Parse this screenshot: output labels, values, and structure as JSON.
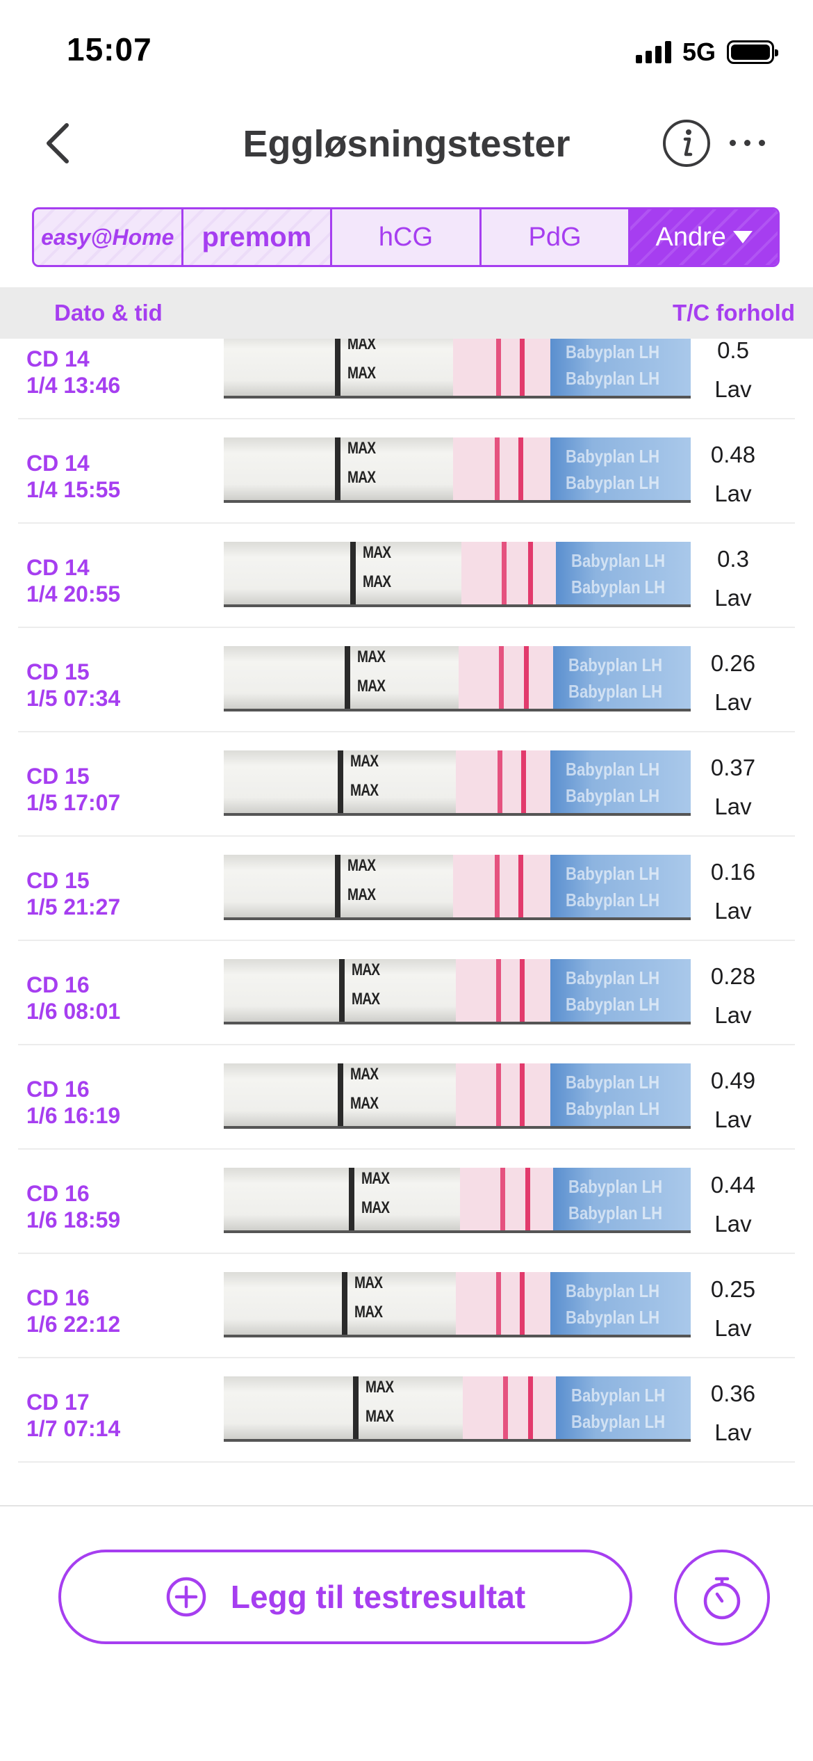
{
  "status_bar": {
    "time": "15:07",
    "network": "5G"
  },
  "nav": {
    "title": "Eggløsningstester",
    "back_icon": "chevron-left-icon",
    "info_icon": "info-icon",
    "more_icon": "ellipsis-icon"
  },
  "tabs": [
    {
      "label": "easy@Home",
      "active": false
    },
    {
      "label": "premom",
      "active": false
    },
    {
      "label": "hCG",
      "active": false
    },
    {
      "label": "PdG",
      "active": false
    },
    {
      "label": "Andre",
      "active": true
    }
  ],
  "columns": {
    "left": "Dato & tid",
    "right": "T/C forhold"
  },
  "strip_labels": {
    "max": "MAX",
    "brand": "Babyplan LH"
  },
  "rows": [
    {
      "cd": "CD 14",
      "datetime": "1/4 13:46",
      "ratio": "0.5",
      "level": "Lav"
    },
    {
      "cd": "CD 14",
      "datetime": "1/4 15:55",
      "ratio": "0.48",
      "level": "Lav"
    },
    {
      "cd": "CD 14",
      "datetime": "1/4 20:55",
      "ratio": "0.3",
      "level": "Lav"
    },
    {
      "cd": "CD 15",
      "datetime": "1/5 07:34",
      "ratio": "0.26",
      "level": "Lav"
    },
    {
      "cd": "CD 15",
      "datetime": "1/5 17:07",
      "ratio": "0.37",
      "level": "Lav"
    },
    {
      "cd": "CD 15",
      "datetime": "1/5 21:27",
      "ratio": "0.16",
      "level": "Lav"
    },
    {
      "cd": "CD 16",
      "datetime": "1/6 08:01",
      "ratio": "0.28",
      "level": "Lav"
    },
    {
      "cd": "CD 16",
      "datetime": "1/6 16:19",
      "ratio": "0.49",
      "level": "Lav"
    },
    {
      "cd": "CD 16",
      "datetime": "1/6 18:59",
      "ratio": "0.44",
      "level": "Lav"
    },
    {
      "cd": "CD 16",
      "datetime": "1/6 22:12",
      "ratio": "0.25",
      "level": "Lav"
    },
    {
      "cd": "CD 17",
      "datetime": "1/7 07:14",
      "ratio": "0.36",
      "level": "Lav"
    }
  ],
  "bottom": {
    "add_label": "Legg til testresultat",
    "add_icon": "plus-circle-icon",
    "timer_icon": "timer-icon"
  },
  "colors": {
    "accent": "#a63ef0",
    "test_line": "#e23a6c"
  }
}
